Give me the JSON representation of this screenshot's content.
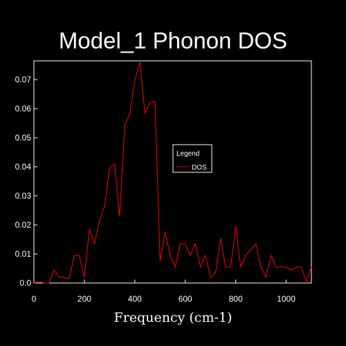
{
  "chart_data": {
    "type": "line",
    "title": "Model_1 Phonon DOS",
    "xlabel": "Frequency (cm-1)",
    "ylabel": "",
    "xlim": [
      0,
      1100
    ],
    "ylim": [
      0,
      0.07
    ],
    "xticks": [
      "0",
      "200",
      "400",
      "600",
      "800",
      "1000"
    ],
    "yticks": [
      "0.0",
      "0.01",
      "0.02",
      "0.03",
      "0.04",
      "0.05",
      "0.06",
      "0.07"
    ],
    "grid": false,
    "legend": {
      "title": "Legend",
      "placement": "center-right"
    },
    "colors": {
      "background": "#000000",
      "axes": "#ffffff",
      "series": "#ff0000"
    },
    "series": [
      {
        "name": "DOS",
        "x": [
          0,
          20,
          40,
          60,
          80,
          100,
          120,
          140,
          160,
          180,
          200,
          220,
          240,
          260,
          280,
          300,
          320,
          340,
          360,
          380,
          400,
          420,
          440,
          460,
          480,
          500,
          520,
          540,
          560,
          580,
          600,
          620,
          640,
          660,
          680,
          700,
          720,
          740,
          760,
          780,
          800,
          820,
          840,
          860,
          880,
          900,
          920,
          940,
          960,
          980,
          1000,
          1020,
          1040,
          1060,
          1080,
          1100
        ],
        "y": [
          0.0,
          0.0005,
          0.0,
          0.0,
          0.0045,
          0.002,
          0.002,
          0.0015,
          0.0095,
          0.0095,
          0.002,
          0.0185,
          0.0135,
          0.0215,
          0.0265,
          0.0395,
          0.041,
          0.023,
          0.0545,
          0.058,
          0.0695,
          0.076,
          0.0585,
          0.062,
          0.0625,
          0.0075,
          0.0175,
          0.0095,
          0.0055,
          0.0135,
          0.0135,
          0.0095,
          0.0135,
          0.0055,
          0.0095,
          0.002,
          0.0035,
          0.0155,
          0.0055,
          0.0055,
          0.0195,
          0.0055,
          0.0095,
          0.0115,
          0.0135,
          0.0055,
          0.002,
          0.0095,
          0.0055,
          0.0055,
          0.0055,
          0.0045,
          0.0055,
          0.0055,
          0.0005,
          0.0055
        ]
      }
    ]
  }
}
